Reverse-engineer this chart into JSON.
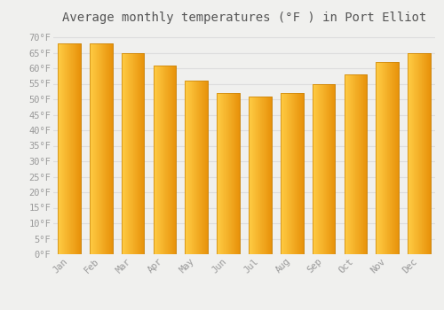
{
  "title": "Average monthly temperatures (°F ) in Port Elliot",
  "months": [
    "Jan",
    "Feb",
    "Mar",
    "Apr",
    "May",
    "Jun",
    "Jul",
    "Aug",
    "Sep",
    "Oct",
    "Nov",
    "Dec"
  ],
  "values": [
    68,
    68,
    65,
    61,
    56,
    52,
    51,
    52,
    55,
    58,
    62,
    65
  ],
  "bar_color_left": "#FFCC44",
  "bar_color_right": "#E8920A",
  "bar_edge_color": "#C8820A",
  "ylim": [
    0,
    72
  ],
  "yticks": [
    0,
    5,
    10,
    15,
    20,
    25,
    30,
    35,
    40,
    45,
    50,
    55,
    60,
    65,
    70
  ],
  "ytick_labels": [
    "0°F",
    "5°F",
    "10°F",
    "15°F",
    "20°F",
    "25°F",
    "30°F",
    "35°F",
    "40°F",
    "45°F",
    "50°F",
    "55°F",
    "60°F",
    "65°F",
    "70°F"
  ],
  "background_color": "#f0f0ee",
  "plot_bg_color": "#f0f0ee",
  "grid_color": "#dddddd",
  "title_fontsize": 10,
  "tick_fontsize": 7.5,
  "bar_width": 0.72,
  "tick_color": "#999999",
  "title_color": "#555555"
}
